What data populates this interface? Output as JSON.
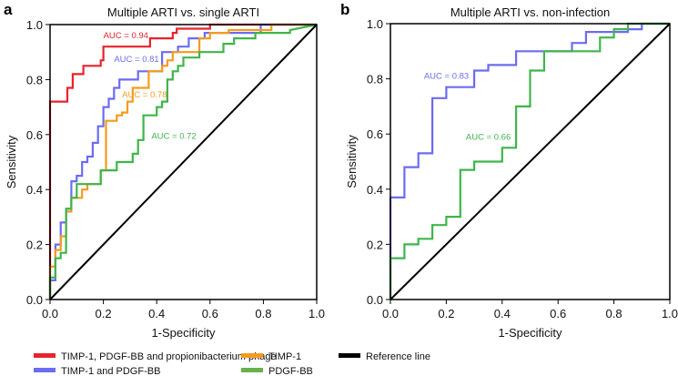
{
  "chart_data": [
    {
      "type": "line",
      "panel_label": "a",
      "title": "Multiple ARTI vs. single ARTI",
      "xlabel": "1-Specificity",
      "ylabel": "Sensitivity",
      "xlim": [
        0,
        1
      ],
      "ylim": [
        0,
        1
      ],
      "xticks": [
        "0.0",
        "0.2",
        "0.4",
        "0.6",
        "0.8",
        "1.0"
      ],
      "yticks": [
        "0.0",
        "0.2",
        "0.4",
        "0.6",
        "0.8",
        "1.0"
      ],
      "grid": false,
      "series": [
        {
          "name": "TIMP-1, PDGF-BB and propionibacterium phage",
          "color": "#e8232b",
          "auc_label": "AUC = 0.94",
          "auc_at": [
            0.2,
            0.95
          ],
          "points": [
            [
              0,
              0
            ],
            [
              0,
              0.72
            ],
            [
              0.065,
              0.72
            ],
            [
              0.065,
              0.77
            ],
            [
              0.085,
              0.77
            ],
            [
              0.085,
              0.82
            ],
            [
              0.125,
              0.82
            ],
            [
              0.125,
              0.85
            ],
            [
              0.19,
              0.85
            ],
            [
              0.19,
              0.87
            ],
            [
              0.2,
              0.87
            ],
            [
              0.2,
              0.92
            ],
            [
              0.375,
              0.92
            ],
            [
              0.375,
              0.95
            ],
            [
              0.46,
              0.95
            ],
            [
              0.46,
              0.97
            ],
            [
              0.475,
              0.97
            ],
            [
              0.475,
              0.985
            ],
            [
              0.6,
              0.985
            ],
            [
              0.6,
              1
            ],
            [
              1,
              1
            ]
          ]
        },
        {
          "name": "TIMP-1 and PDGF-BB",
          "color": "#6b6cf2",
          "auc_label": "AUC = 0.81",
          "auc_at": [
            0.24,
            0.865
          ],
          "points": [
            [
              0,
              0
            ],
            [
              0,
              0.07
            ],
            [
              0.02,
              0.07
            ],
            [
              0.02,
              0.2
            ],
            [
              0.04,
              0.2
            ],
            [
              0.04,
              0.28
            ],
            [
              0.06,
              0.28
            ],
            [
              0.06,
              0.33
            ],
            [
              0.08,
              0.33
            ],
            [
              0.08,
              0.43
            ],
            [
              0.1,
              0.43
            ],
            [
              0.1,
              0.45
            ],
            [
              0.12,
              0.45
            ],
            [
              0.12,
              0.5
            ],
            [
              0.14,
              0.5
            ],
            [
              0.14,
              0.52
            ],
            [
              0.16,
              0.52
            ],
            [
              0.16,
              0.57
            ],
            [
              0.18,
              0.57
            ],
            [
              0.18,
              0.63
            ],
            [
              0.2,
              0.63
            ],
            [
              0.2,
              0.7
            ],
            [
              0.22,
              0.7
            ],
            [
              0.22,
              0.73
            ],
            [
              0.24,
              0.73
            ],
            [
              0.24,
              0.77
            ],
            [
              0.26,
              0.77
            ],
            [
              0.26,
              0.8
            ],
            [
              0.33,
              0.8
            ],
            [
              0.33,
              0.83
            ],
            [
              0.42,
              0.83
            ],
            [
              0.42,
              0.9
            ],
            [
              0.48,
              0.9
            ],
            [
              0.48,
              0.92
            ],
            [
              0.52,
              0.92
            ],
            [
              0.52,
              0.95
            ],
            [
              0.58,
              0.95
            ],
            [
              0.58,
              0.97
            ],
            [
              0.79,
              0.97
            ],
            [
              0.79,
              1
            ],
            [
              1,
              1
            ]
          ]
        },
        {
          "name": "TIMP-1",
          "color": "#f49b1f",
          "auc_label": "AUC = 0.78",
          "auc_at": [
            0.27,
            0.735
          ],
          "points": [
            [
              0,
              0
            ],
            [
              0,
              0.12
            ],
            [
              0.02,
              0.12
            ],
            [
              0.02,
              0.18
            ],
            [
              0.04,
              0.18
            ],
            [
              0.04,
              0.23
            ],
            [
              0.06,
              0.23
            ],
            [
              0.06,
              0.32
            ],
            [
              0.08,
              0.32
            ],
            [
              0.08,
              0.37
            ],
            [
              0.12,
              0.37
            ],
            [
              0.12,
              0.4
            ],
            [
              0.14,
              0.4
            ],
            [
              0.14,
              0.42
            ],
            [
              0.19,
              0.42
            ],
            [
              0.19,
              0.47
            ],
            [
              0.21,
              0.47
            ],
            [
              0.21,
              0.65
            ],
            [
              0.25,
              0.65
            ],
            [
              0.25,
              0.67
            ],
            [
              0.27,
              0.67
            ],
            [
              0.27,
              0.68
            ],
            [
              0.29,
              0.68
            ],
            [
              0.29,
              0.72
            ],
            [
              0.31,
              0.72
            ],
            [
              0.31,
              0.77
            ],
            [
              0.37,
              0.77
            ],
            [
              0.37,
              0.83
            ],
            [
              0.42,
              0.83
            ],
            [
              0.42,
              0.85
            ],
            [
              0.44,
              0.85
            ],
            [
              0.44,
              0.87
            ],
            [
              0.46,
              0.87
            ],
            [
              0.46,
              0.9
            ],
            [
              0.56,
              0.9
            ],
            [
              0.56,
              0.95
            ],
            [
              0.6,
              0.95
            ],
            [
              0.6,
              0.97
            ],
            [
              0.67,
              0.97
            ],
            [
              0.67,
              0.98
            ],
            [
              0.83,
              0.98
            ],
            [
              0.83,
              1
            ],
            [
              1,
              1
            ]
          ]
        },
        {
          "name": "PDGF-BB",
          "color": "#3fb54b",
          "auc_label": "AUC = 0.72",
          "auc_at": [
            0.38,
            0.585
          ],
          "points": [
            [
              0,
              0
            ],
            [
              0,
              0.08
            ],
            [
              0.02,
              0.08
            ],
            [
              0.02,
              0.15
            ],
            [
              0.04,
              0.15
            ],
            [
              0.04,
              0.17
            ],
            [
              0.06,
              0.17
            ],
            [
              0.06,
              0.33
            ],
            [
              0.08,
              0.33
            ],
            [
              0.08,
              0.37
            ],
            [
              0.1,
              0.37
            ],
            [
              0.1,
              0.42
            ],
            [
              0.19,
              0.42
            ],
            [
              0.19,
              0.47
            ],
            [
              0.25,
              0.47
            ],
            [
              0.25,
              0.5
            ],
            [
              0.31,
              0.5
            ],
            [
              0.31,
              0.53
            ],
            [
              0.33,
              0.53
            ],
            [
              0.33,
              0.58
            ],
            [
              0.35,
              0.58
            ],
            [
              0.35,
              0.67
            ],
            [
              0.4,
              0.67
            ],
            [
              0.4,
              0.7
            ],
            [
              0.42,
              0.7
            ],
            [
              0.42,
              0.72
            ],
            [
              0.44,
              0.72
            ],
            [
              0.44,
              0.8
            ],
            [
              0.46,
              0.8
            ],
            [
              0.46,
              0.83
            ],
            [
              0.48,
              0.83
            ],
            [
              0.48,
              0.85
            ],
            [
              0.5,
              0.85
            ],
            [
              0.5,
              0.88
            ],
            [
              0.56,
              0.88
            ],
            [
              0.56,
              0.9
            ],
            [
              0.65,
              0.9
            ],
            [
              0.65,
              0.93
            ],
            [
              0.69,
              0.93
            ],
            [
              0.69,
              0.95
            ],
            [
              0.77,
              0.95
            ],
            [
              0.77,
              0.97
            ],
            [
              0.9,
              0.97
            ],
            [
              0.9,
              0.98
            ],
            [
              1,
              1
            ]
          ]
        },
        {
          "name": "Reference line",
          "color": "#000000",
          "points": [
            [
              0,
              0
            ],
            [
              1,
              1
            ]
          ]
        }
      ]
    },
    {
      "type": "line",
      "panel_label": "b",
      "title": "Multiple ARTI vs. non-infection",
      "xlabel": "1-Specificity",
      "ylabel": "Sensitivity",
      "xlim": [
        0,
        1
      ],
      "ylim": [
        0,
        1
      ],
      "xticks": [
        "0.0",
        "0.2",
        "0.4",
        "0.6",
        "0.8",
        "1.0"
      ],
      "yticks": [
        "0.0",
        "0.2",
        "0.4",
        "0.6",
        "0.8",
        "1.0"
      ],
      "grid": false,
      "series": [
        {
          "name": "TIMP-1 and PDGF-BB",
          "color": "#6b6cf2",
          "auc_label": "AUC = 0.83",
          "auc_at": [
            0.12,
            0.8
          ],
          "points": [
            [
              0,
              0
            ],
            [
              0,
              0.37
            ],
            [
              0.05,
              0.37
            ],
            [
              0.05,
              0.48
            ],
            [
              0.1,
              0.48
            ],
            [
              0.1,
              0.53
            ],
            [
              0.15,
              0.53
            ],
            [
              0.15,
              0.73
            ],
            [
              0.2,
              0.73
            ],
            [
              0.2,
              0.77
            ],
            [
              0.3,
              0.77
            ],
            [
              0.3,
              0.83
            ],
            [
              0.35,
              0.83
            ],
            [
              0.35,
              0.85
            ],
            [
              0.45,
              0.85
            ],
            [
              0.45,
              0.9
            ],
            [
              0.65,
              0.9
            ],
            [
              0.65,
              0.93
            ],
            [
              0.7,
              0.93
            ],
            [
              0.7,
              0.97
            ],
            [
              0.85,
              0.97
            ],
            [
              0.85,
              0.98
            ],
            [
              0.9,
              0.98
            ],
            [
              0.9,
              1
            ],
            [
              1,
              1
            ]
          ]
        },
        {
          "name": "PDGF-BB",
          "color": "#3fb54b",
          "auc_label": "AUC = 0.66",
          "auc_at": [
            0.27,
            0.58
          ],
          "points": [
            [
              0,
              0
            ],
            [
              0,
              0.15
            ],
            [
              0.05,
              0.15
            ],
            [
              0.05,
              0.2
            ],
            [
              0.1,
              0.2
            ],
            [
              0.1,
              0.22
            ],
            [
              0.15,
              0.22
            ],
            [
              0.15,
              0.27
            ],
            [
              0.2,
              0.27
            ],
            [
              0.2,
              0.3
            ],
            [
              0.25,
              0.3
            ],
            [
              0.25,
              0.47
            ],
            [
              0.3,
              0.47
            ],
            [
              0.3,
              0.5
            ],
            [
              0.4,
              0.5
            ],
            [
              0.4,
              0.55
            ],
            [
              0.45,
              0.55
            ],
            [
              0.45,
              0.7
            ],
            [
              0.5,
              0.7
            ],
            [
              0.5,
              0.83
            ],
            [
              0.55,
              0.83
            ],
            [
              0.55,
              0.9
            ],
            [
              0.75,
              0.9
            ],
            [
              0.75,
              0.95
            ],
            [
              0.8,
              0.95
            ],
            [
              0.8,
              0.98
            ],
            [
              0.85,
              0.98
            ],
            [
              0.85,
              1
            ],
            [
              1,
              1
            ]
          ]
        },
        {
          "name": "Reference line",
          "color": "#000000",
          "points": [
            [
              0,
              0
            ],
            [
              1,
              1
            ]
          ]
        }
      ]
    }
  ],
  "legend": {
    "placement": "bottom",
    "items": [
      {
        "label": "TIMP-1, PDGF-BB and propionibacterium phage",
        "color": "#e8232b"
      },
      {
        "label": "TIMP-1",
        "color": "#f49b1f"
      },
      {
        "label": "Reference line",
        "color": "#000000"
      },
      {
        "label": "TIMP-1 and PDGF-BB",
        "color": "#6b6cf2"
      },
      {
        "label": "PDGF-BB",
        "color": "#6ab04c"
      }
    ]
  }
}
